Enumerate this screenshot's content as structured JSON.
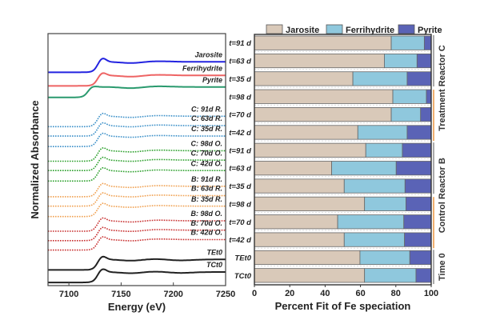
{
  "chart_data": [
    {
      "type": "line",
      "title": "",
      "xlabel": "Energy (eV)",
      "ylabel": "Normalized Absorbance",
      "xlim": [
        7080,
        7250
      ],
      "xticks": [
        "7100",
        "7150",
        "7200",
        "7250"
      ],
      "ylim": [
        0,
        24.1
      ],
      "series": [
        {
          "name": "Jarosite",
          "color": "#2323e0",
          "style": "solid",
          "offset": 20.4,
          "edge": 7127,
          "peak": 0.4
        },
        {
          "name": "Ferrihydrite",
          "color": "#ee6464",
          "style": "solid",
          "offset": 19.1,
          "edge": 7127,
          "peak": 0.3
        },
        {
          "name": "Pyrite",
          "color": "#2a9a6e",
          "style": "solid",
          "offset": 18.0,
          "edge": 7118,
          "peak": 0.1
        },
        {
          "name": "C: 91d R.",
          "color": "#3a8fc8",
          "style": "dotted",
          "offset": 15.2,
          "edge": 7127,
          "peak": 0.35
        },
        {
          "name": "C: 63d R.",
          "color": "#3a8fc8",
          "style": "dotted",
          "offset": 14.3,
          "edge": 7127,
          "peak": 0.35
        },
        {
          "name": "C: 35d R.",
          "color": "#3a8fc8",
          "style": "dotted",
          "offset": 13.3,
          "edge": 7127,
          "peak": 0.35
        },
        {
          "name": "C: 98d O.",
          "color": "#2ca02c",
          "style": "dotted",
          "offset": 11.9,
          "edge": 7127,
          "peak": 0.35
        },
        {
          "name": "C: 70d O.",
          "color": "#2ca02c",
          "style": "dotted",
          "offset": 11.0,
          "edge": 7127,
          "peak": 0.35
        },
        {
          "name": "C: 42d O.",
          "color": "#2ca02c",
          "style": "dotted",
          "offset": 10.0,
          "edge": 7127,
          "peak": 0.35
        },
        {
          "name": "B: 91d R.",
          "color": "#f0a050",
          "style": "dotted",
          "offset": 8.5,
          "edge": 7127,
          "peak": 0.35
        },
        {
          "name": "B: 63d R.",
          "color": "#f0a050",
          "style": "dotted",
          "offset": 7.6,
          "edge": 7127,
          "peak": 0.35
        },
        {
          "name": "B: 35d R.",
          "color": "#f0a050",
          "style": "dotted",
          "offset": 6.6,
          "edge": 7127,
          "peak": 0.35
        },
        {
          "name": "B: 98d O.",
          "color": "#c83030",
          "style": "dotted",
          "offset": 5.2,
          "edge": 7127,
          "peak": 0.35
        },
        {
          "name": "B: 70d O.",
          "color": "#c83030",
          "style": "dotted",
          "offset": 4.3,
          "edge": 7127,
          "peak": 0.35
        },
        {
          "name": "B: 42d O.",
          "color": "#c83030",
          "style": "dotted",
          "offset": 3.4,
          "edge": 7127,
          "peak": 0.35
        },
        {
          "name": "TEt0",
          "color": "#222222",
          "style": "solid",
          "offset": 1.5,
          "edge": 7127,
          "peak": 0.35
        },
        {
          "name": "TCt0",
          "color": "#222222",
          "style": "solid",
          "offset": 0.3,
          "edge": 7127,
          "peak": 0.35
        }
      ]
    },
    {
      "type": "bar",
      "orientation": "horizontal",
      "stacked": true,
      "xlabel": "Percent Fit of Fe speciation",
      "xlim": [
        0,
        100
      ],
      "xticks": [
        "0",
        "20",
        "40",
        "60",
        "80",
        "100"
      ],
      "legend": {
        "placement": "top",
        "entries": [
          "Jarosite",
          "Ferrihydrite",
          "Pyrite"
        ]
      },
      "colors": {
        "Jarosite": "#d9c9b9",
        "Ferrihydrite": "#8fc8dd",
        "Pyrite": "#5a63b6"
      },
      "categories": [
        "t=91 d",
        "t=63 d",
        "t=35 d",
        "t=98 d",
        "t=70 d",
        "t=42 d",
        "t=91 d",
        "t=63 d",
        "t=35 d",
        "t=98 d",
        "t=70 d",
        "t=42 d",
        "TEt0",
        "TCt0"
      ],
      "series": [
        {
          "name": "Jarosite",
          "values": [
            77.4,
            73.5,
            55.7,
            78.3,
            77.4,
            58.5,
            63.0,
            43.7,
            50.8,
            62.3,
            47.1,
            50.8,
            59.7,
            62.3
          ]
        },
        {
          "name": "Ferrihydrite",
          "values": [
            18.7,
            18.5,
            30.7,
            19.0,
            16.6,
            27.9,
            20.7,
            36.5,
            34.4,
            23.4,
            37.4,
            34.1,
            28.2,
            29.1
          ]
        },
        {
          "name": "Pyrite",
          "values": [
            3.9,
            8.0,
            13.6,
            2.7,
            6.0,
            13.6,
            16.3,
            19.8,
            14.8,
            14.3,
            15.5,
            15.1,
            12.1,
            8.6
          ]
        }
      ],
      "groups": [
        {
          "label": "Treatment Reactor C",
          "rows": [
            0,
            5
          ],
          "colors": [
            "#aaaaaa",
            "#f0b070"
          ]
        },
        {
          "label": "Control Reactor B",
          "rows": [
            6,
            11
          ],
          "colors": [
            "#aaaaaa",
            "#f0b070"
          ]
        },
        {
          "label": "Time 0",
          "rows": [
            12,
            13
          ],
          "colors": [
            "#aaaaaa"
          ]
        }
      ]
    }
  ]
}
